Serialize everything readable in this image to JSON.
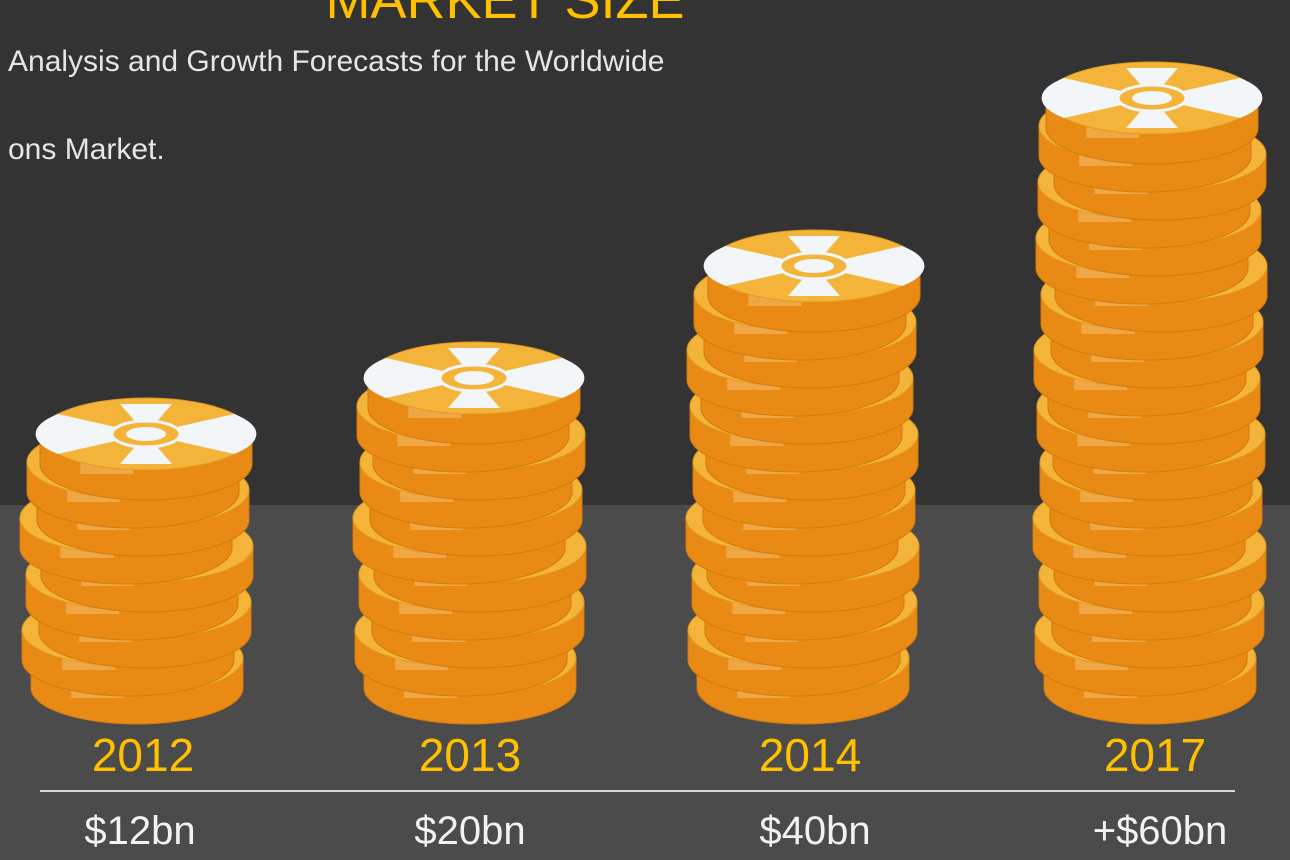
{
  "title": "MARKET SIZE",
  "subtitle_line1": "Analysis and Growth Forecasts for the Worldwide",
  "subtitle_line2": "ons Market.",
  "colors": {
    "background_top": "#333333",
    "background_bottom": "#4b4b4b",
    "accent_yellow": "#ffc000",
    "coin_orange": "#e88a14",
    "coin_light": "#f0a949",
    "coin_top": "#f4b43a",
    "coin_emblem": "#f2f6f8"
  },
  "chart_data": {
    "type": "bar",
    "title": "MARKET SIZE",
    "categories": [
      "2012",
      "2013",
      "2014",
      "2017"
    ],
    "values": [
      12,
      20,
      40,
      60
    ],
    "value_labels": [
      "$12bn",
      "$20bn",
      "$40bn",
      "+$60bn"
    ],
    "coin_counts": [
      9,
      11,
      15,
      21
    ],
    "grid": false,
    "legend": "none"
  }
}
